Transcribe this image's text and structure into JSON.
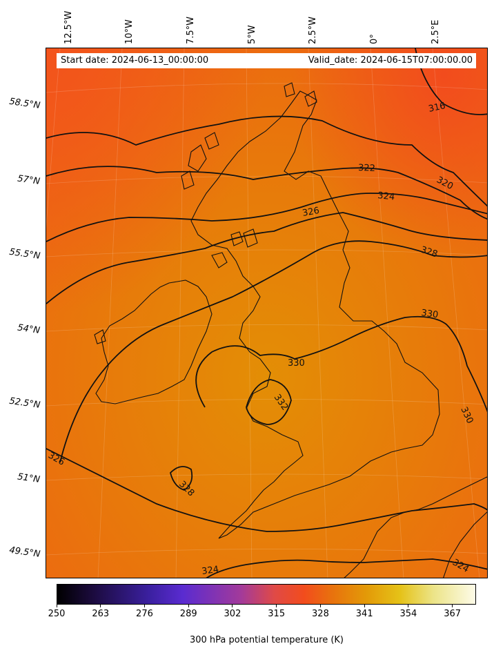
{
  "header": {
    "start_date": "Start date: 2024-06-13_00:00:00",
    "valid_date": "Valid_date: 2024-06-15T07:00:00.00"
  },
  "map": {
    "longitude_labels": [
      "12.5°W",
      "10°W",
      "7.5°W",
      "5°W",
      "2.5°W",
      "0°",
      "2.5°E"
    ],
    "latitude_labels": [
      "58.5°N",
      "57°N",
      "55.5°N",
      "54°N",
      "52.5°N",
      "51°N",
      "49.5°N"
    ],
    "contour_labels": [
      "316",
      "320",
      "322",
      "324",
      "326",
      "328",
      "330",
      "332",
      "326",
      "328",
      "330",
      "324",
      "330",
      "324"
    ],
    "field_colors": {
      "low": "#f2521c",
      "mid": "#e8700d",
      "high": "#e38e05"
    }
  },
  "colorbar": {
    "title": "300 hPa potential temperature (K)",
    "ticks": [
      "250",
      "263",
      "276",
      "289",
      "302",
      "315",
      "328",
      "341",
      "354",
      "367"
    ],
    "range": [
      250,
      374
    ],
    "colormap": "gnuplot2-like: black → indigo → violet → red-orange → orange → yellow → white"
  }
}
